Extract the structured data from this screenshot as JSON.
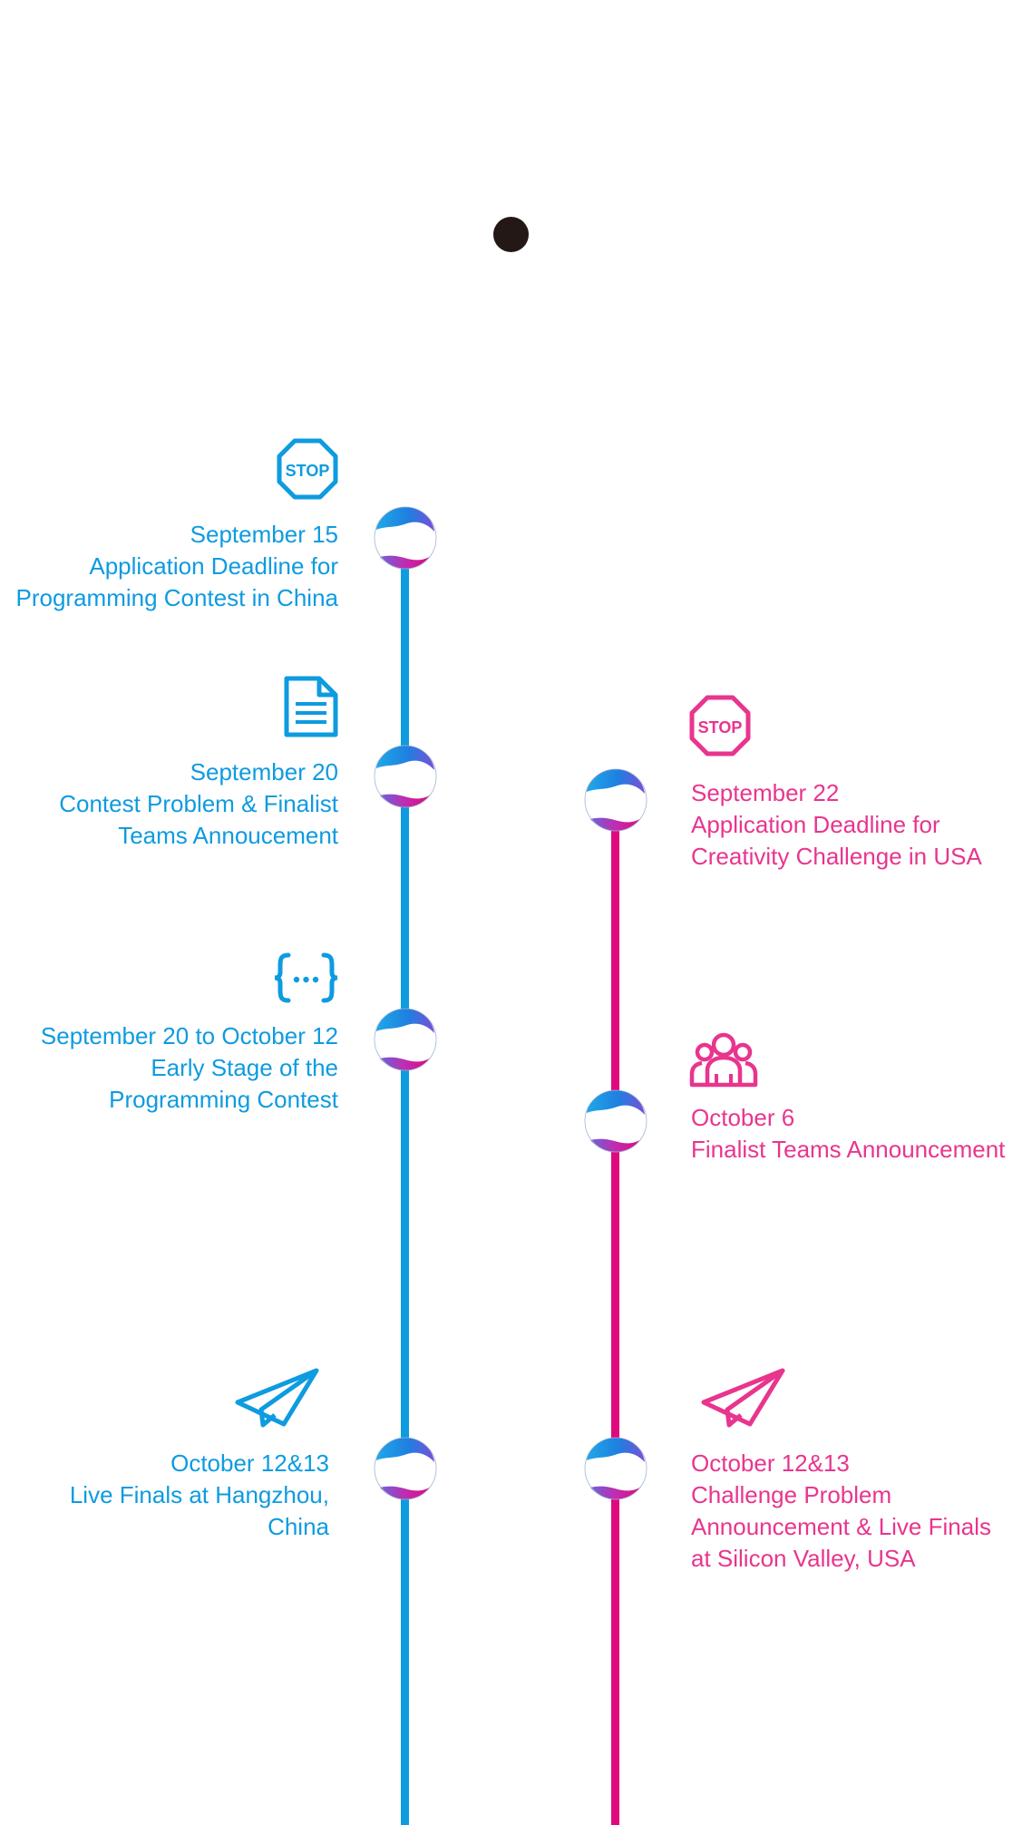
{
  "colors": {
    "blue": "#0E9BE0",
    "pink": "#E0087F",
    "pink_text": "#E8358E",
    "dot": "#231815"
  },
  "left_track": {
    "events": [
      {
        "icon": "stop-sign-icon",
        "icon_text": "STOP",
        "date": "September 15",
        "lines": [
          "Application Deadline for",
          "Programming Contest in China"
        ]
      },
      {
        "icon": "document-icon",
        "date": "September 20",
        "lines": [
          "Contest Problem & Finalist",
          "Teams Annoucement"
        ]
      },
      {
        "icon": "code-braces-icon",
        "date": "September 20 to October 12",
        "lines": [
          "Early Stage of the",
          "Programming Contest"
        ]
      },
      {
        "icon": "paper-plane-icon",
        "date": "October 12&13",
        "lines": [
          "Live Finals at Hangzhou,",
          "China"
        ]
      }
    ]
  },
  "right_track": {
    "events": [
      {
        "icon": "stop-sign-icon",
        "icon_text": "STOP",
        "date": "September 22",
        "lines": [
          "Application Deadline for",
          "Creativity Challenge in USA"
        ]
      },
      {
        "icon": "group-icon",
        "date": "October 6",
        "lines": [
          "Finalist Teams Announcement"
        ]
      },
      {
        "icon": "paper-plane-icon",
        "date": "October 12&13",
        "lines": [
          "Challenge Problem",
          "Announcement & Live Finals",
          "at Silicon Valley, USA"
        ]
      }
    ]
  }
}
